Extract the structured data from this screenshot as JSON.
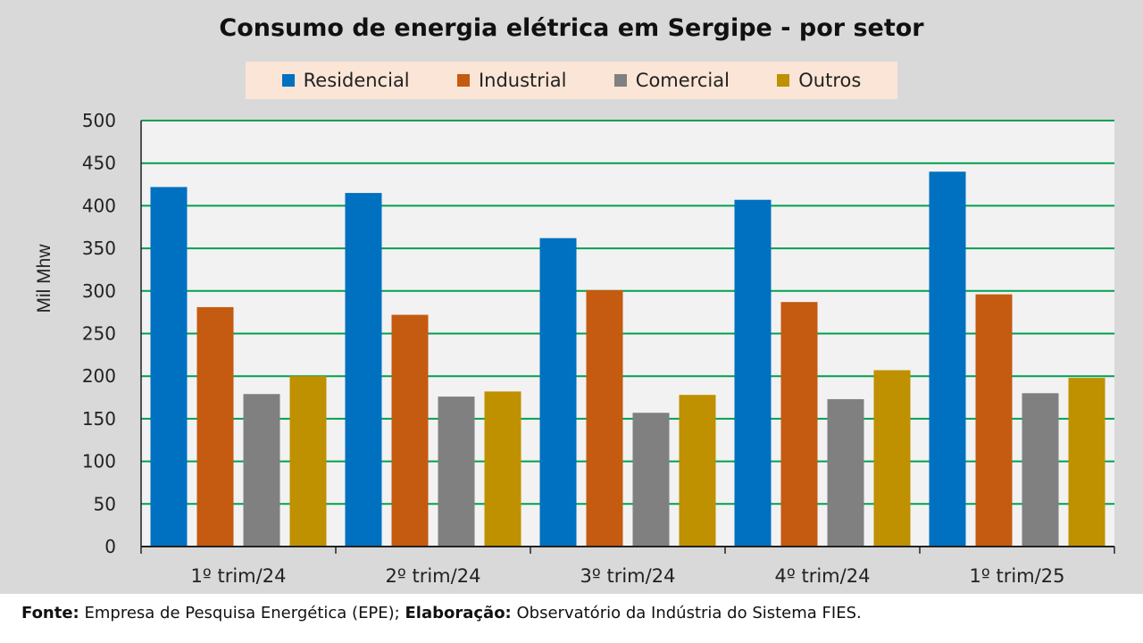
{
  "chart_data": {
    "type": "bar",
    "title": "Consumo de energia elétrica em Sergipe - por setor",
    "xlabel": "",
    "ylabel": "Mil Mhw",
    "ylim": [
      0,
      500
    ],
    "yticks": [
      0,
      50,
      100,
      150,
      200,
      250,
      300,
      350,
      400,
      450,
      500
    ],
    "grid": true,
    "legend_position": "top",
    "categories": [
      "1º trim/24",
      "2º trim/24",
      "3º trim/24",
      "4º trim/24",
      "1º trim/25"
    ],
    "series": [
      {
        "name": "Residencial",
        "color": "#0070c0",
        "values": [
          422,
          415,
          362,
          407,
          440
        ]
      },
      {
        "name": "Industrial",
        "color": "#c55a11",
        "values": [
          281,
          272,
          301,
          287,
          296
        ]
      },
      {
        "name": "Comercial",
        "color": "#808080",
        "values": [
          179,
          176,
          157,
          173,
          180
        ]
      },
      {
        "name": "Outros",
        "color": "#bf9000",
        "values": [
          200,
          182,
          178,
          207,
          198
        ]
      }
    ]
  },
  "footer": {
    "source_label": "Fonte:",
    "source_text": "Empresa de Pesquisa Energética (EPE);",
    "credit_label": "Elaboração:",
    "credit_text": "Observatório da Indústria do Sistema FIES."
  },
  "colors": {
    "plot_background": "#f2f2f2",
    "gridline": "#00a050",
    "legend_background": "#fbe5d6"
  }
}
